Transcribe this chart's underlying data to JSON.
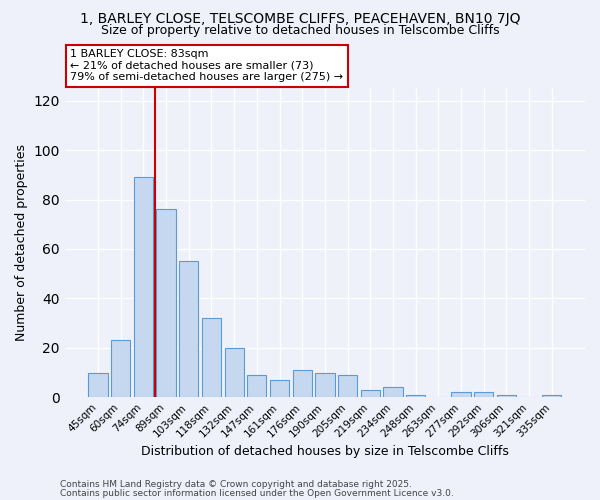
{
  "title": "1, BARLEY CLOSE, TELSCOMBE CLIFFS, PEACEHAVEN, BN10 7JQ",
  "subtitle": "Size of property relative to detached houses in Telscombe Cliffs",
  "xlabel": "Distribution of detached houses by size in Telscombe Cliffs",
  "ylabel": "Number of detached properties",
  "categories": [
    "45sqm",
    "60sqm",
    "74sqm",
    "89sqm",
    "103sqm",
    "118sqm",
    "132sqm",
    "147sqm",
    "161sqm",
    "176sqm",
    "190sqm",
    "205sqm",
    "219sqm",
    "234sqm",
    "248sqm",
    "263sqm",
    "277sqm",
    "292sqm",
    "306sqm",
    "321sqm",
    "335sqm"
  ],
  "values": [
    10,
    23,
    89,
    76,
    55,
    32,
    20,
    9,
    7,
    11,
    10,
    9,
    3,
    4,
    1,
    0,
    2,
    2,
    1,
    0,
    1
  ],
  "bar_color": "#c5d8f0",
  "bar_edge_color": "#5b9bd5",
  "vline_x": 2.5,
  "vline_color": "#cc0000",
  "annotation_title": "1 BARLEY CLOSE: 83sqm",
  "annotation_line1": "← 21% of detached houses are smaller (73)",
  "annotation_line2": "79% of semi-detached houses are larger (275) →",
  "annotation_box_color": "#ffffff",
  "annotation_box_edge": "#cc0000",
  "ylim": [
    0,
    125
  ],
  "yticks": [
    0,
    20,
    40,
    60,
    80,
    100,
    120
  ],
  "background_color": "#eef1fa",
  "grid_color": "#ffffff",
  "footer1": "Contains HM Land Registry data © Crown copyright and database right 2025.",
  "footer2": "Contains public sector information licensed under the Open Government Licence v3.0.",
  "title_fontsize": 10,
  "subtitle_fontsize": 9
}
